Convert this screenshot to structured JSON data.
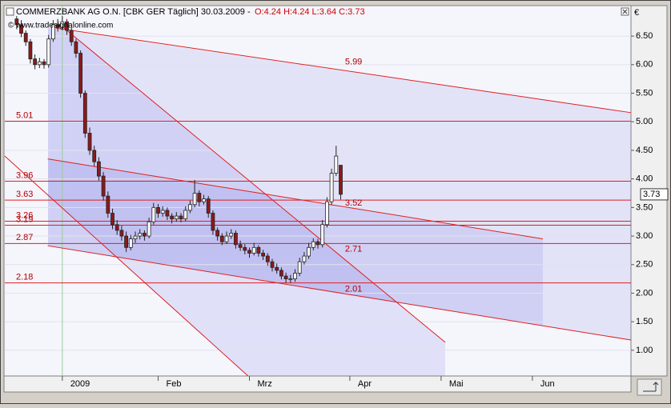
{
  "chart_data": {
    "type": "candlestick",
    "title": "COMMERZBANK AG O.N. [CBK GER  Täglich] 30.03.2009 -",
    "subtitle": "O:4.24 H:4.24 L:3.64 C:3.73",
    "watermark": "© www.tradesignalonline.com",
    "y_axis_label": "€",
    "x": [
      -10,
      -9,
      -8,
      -7,
      -6,
      -5,
      -4,
      -3,
      -2,
      -1,
      0,
      1,
      2,
      3,
      4,
      5,
      6,
      7,
      8,
      9,
      10,
      11,
      12,
      13,
      14,
      15,
      16,
      17,
      18,
      19,
      20,
      21,
      22,
      23,
      24,
      25,
      26,
      27,
      28,
      29,
      30,
      31,
      32,
      33,
      34,
      35,
      36,
      37,
      38,
      39,
      40,
      41,
      42,
      43,
      44,
      45,
      46,
      47,
      48,
      49,
      50,
      51,
      52,
      53,
      54,
      55,
      56,
      57,
      58,
      59,
      60,
      61
    ],
    "open": [
      6.8,
      6.7,
      6.55,
      6.4,
      6.1,
      6.0,
      6.05,
      6.0,
      6.45,
      6.7,
      6.65,
      6.75,
      6.6,
      6.4,
      6.2,
      5.5,
      4.8,
      4.5,
      4.3,
      4.05,
      3.7,
      3.4,
      3.2,
      3.1,
      3.0,
      2.8,
      2.95,
      3.0,
      3.05,
      3.0,
      3.25,
      3.5,
      3.4,
      3.45,
      3.35,
      3.3,
      3.35,
      3.3,
      3.45,
      3.55,
      3.75,
      3.6,
      3.65,
      3.4,
      3.1,
      3.0,
      2.9,
      3.0,
      3.05,
      2.85,
      2.8,
      2.75,
      2.7,
      2.8,
      2.7,
      2.65,
      2.55,
      2.45,
      2.4,
      2.3,
      2.25,
      2.25,
      2.35,
      2.55,
      2.65,
      2.8,
      2.9,
      2.85,
      3.2,
      3.6,
      4.1,
      4.24
    ],
    "high": [
      6.85,
      6.78,
      6.6,
      6.45,
      6.18,
      6.12,
      6.1,
      6.52,
      6.78,
      6.8,
      6.85,
      6.8,
      6.65,
      6.45,
      6.25,
      5.55,
      4.9,
      4.58,
      4.38,
      4.12,
      3.78,
      3.48,
      3.28,
      3.18,
      3.08,
      3.02,
      3.08,
      3.12,
      3.1,
      3.32,
      3.58,
      3.56,
      3.52,
      3.5,
      3.4,
      3.42,
      3.4,
      3.52,
      3.62,
      3.98,
      3.8,
      3.72,
      3.7,
      3.45,
      3.15,
      3.05,
      3.08,
      3.12,
      3.1,
      2.92,
      2.86,
      2.8,
      2.88,
      2.84,
      2.76,
      2.7,
      2.6,
      2.52,
      2.45,
      2.36,
      2.32,
      2.42,
      2.62,
      2.72,
      2.88,
      2.96,
      2.95,
      3.28,
      3.68,
      4.18,
      4.58,
      4.24
    ],
    "low": [
      6.62,
      6.48,
      6.33,
      6.02,
      5.92,
      5.94,
      5.93,
      5.95,
      6.4,
      6.58,
      6.6,
      6.52,
      6.33,
      6.12,
      5.42,
      4.72,
      4.42,
      4.22,
      3.97,
      3.62,
      3.32,
      3.12,
      3.02,
      2.92,
      2.72,
      2.75,
      2.88,
      2.94,
      2.92,
      2.96,
      3.2,
      3.32,
      3.34,
      3.28,
      3.22,
      3.25,
      3.24,
      3.26,
      3.4,
      3.5,
      3.52,
      3.55,
      3.32,
      3.02,
      2.92,
      2.84,
      2.86,
      2.95,
      2.78,
      2.74,
      2.68,
      2.62,
      2.66,
      2.64,
      2.58,
      2.48,
      2.38,
      2.34,
      2.24,
      2.18,
      2.18,
      2.2,
      2.3,
      2.5,
      2.6,
      2.75,
      2.78,
      2.8,
      3.15,
      3.55,
      4.05,
      3.64
    ],
    "close": [
      6.7,
      6.55,
      6.4,
      6.1,
      6.0,
      6.05,
      6.0,
      6.45,
      6.7,
      6.65,
      6.75,
      6.6,
      6.4,
      6.2,
      5.5,
      4.8,
      4.5,
      4.3,
      4.05,
      3.7,
      3.4,
      3.2,
      3.1,
      3.0,
      2.8,
      2.95,
      3.0,
      3.05,
      3.0,
      3.25,
      3.5,
      3.4,
      3.45,
      3.35,
      3.3,
      3.35,
      3.3,
      3.45,
      3.55,
      3.75,
      3.6,
      3.65,
      3.4,
      3.1,
      3.0,
      2.9,
      3.0,
      3.05,
      2.85,
      2.8,
      2.75,
      2.7,
      2.8,
      2.7,
      2.65,
      2.55,
      2.45,
      2.4,
      2.3,
      2.25,
      2.25,
      2.35,
      2.55,
      2.65,
      2.8,
      2.9,
      2.85,
      3.2,
      3.6,
      4.1,
      4.4,
      3.73
    ],
    "up_color": "#ffffff",
    "down_color": "#8b1a1a",
    "line_color": "#dd2020",
    "xlim": [
      -12.6,
      124.6
    ],
    "xticks": [
      {
        "value": 0,
        "label": "2009"
      },
      {
        "value": 21,
        "label": "Feb"
      },
      {
        "value": 41,
        "label": "Mrz"
      },
      {
        "value": 63,
        "label": "Apr"
      },
      {
        "value": 83,
        "label": "Mai"
      },
      {
        "value": 103,
        "label": "Jun"
      }
    ],
    "ylim": [
      0.55,
      7.02
    ],
    "yticks": [
      {
        "value": 1,
        "label": "1.00"
      },
      {
        "value": 1.5,
        "label": "1.50"
      },
      {
        "value": 2,
        "label": "2.00"
      },
      {
        "value": 2.5,
        "label": "2.50"
      },
      {
        "value": 3,
        "label": "3.00"
      },
      {
        "value": 3.5,
        "label": "3.50"
      },
      {
        "value": 4,
        "label": "4.00"
      },
      {
        "value": 4.5,
        "label": "4.50"
      },
      {
        "value": 5,
        "label": "5.00"
      },
      {
        "value": 5.5,
        "label": "5.50"
      },
      {
        "value": 6,
        "label": "6.00"
      },
      {
        "value": 6.5,
        "label": "6.50"
      }
    ],
    "horizontal_lines": [
      5.01,
      3.96,
      3.63,
      3.26,
      3.19,
      2.87,
      2.18
    ],
    "trend_lines": [
      {
        "x": [
          -1.4,
          124.6
        ],
        "y": [
          6.64,
          5.16
        ]
      },
      {
        "x": [
          -3.2,
          105.3
        ],
        "y": [
          4.35,
          2.95
        ]
      },
      {
        "x": [
          -3.2,
          124.6
        ],
        "y": [
          2.83,
          1.18
        ]
      },
      {
        "x": [
          0.4,
          83.9
        ],
        "y": [
          6.64,
          1.14
        ]
      },
      {
        "x": [
          -12.6,
          40.7
        ],
        "y": [
          4.4,
          0.55
        ]
      }
    ],
    "trend_labels": [
      5.99,
      3.52,
      2.71,
      2.01
    ],
    "grid": true
  }
}
